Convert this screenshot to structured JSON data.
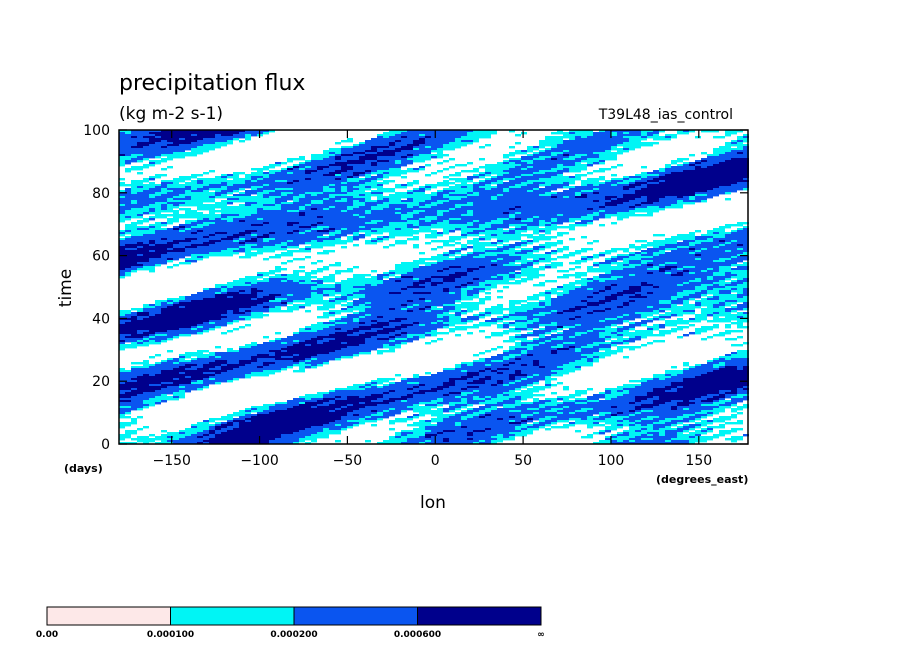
{
  "chart_data": {
    "type": "heatmap",
    "title": "precipitation flux",
    "units": "(kg m-2 s-1)",
    "dataset": "T39L48_ias_control",
    "xlabel": "lon",
    "xunits": "(degrees_east)",
    "ylabel": "time",
    "yunits": "(days)",
    "xlim": [
      -180,
      178
    ],
    "ylim": [
      0,
      100
    ],
    "xticks": [
      -150,
      -100,
      -50,
      0,
      50,
      100,
      150
    ],
    "xticklabels": [
      "−150",
      "−100",
      "−50",
      "0",
      "50",
      "100",
      "150"
    ],
    "yticks": [
      0,
      20,
      40,
      60,
      80,
      100
    ],
    "yticklabels": [
      "0",
      "20",
      "40",
      "60",
      "80",
      "100"
    ],
    "levels": [
      0.0,
      0.0001,
      0.0002,
      0.0006
    ],
    "colorbar_labels": [
      "0.00",
      "0.000100",
      "0.000200",
      "0.000600",
      "∞"
    ],
    "colors": [
      "#fde8e8",
      "#00f5f5",
      "#0a55f0",
      "#00008c"
    ],
    "background": "#ffffff"
  }
}
